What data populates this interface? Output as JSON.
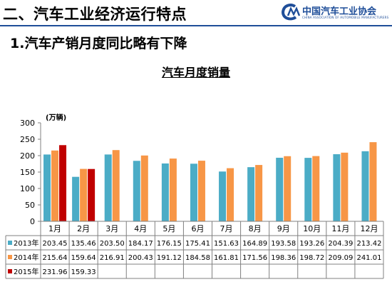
{
  "header": {
    "title": "二、汽车工业经济运行特点",
    "logo_name": "中国汽车工业协会",
    "logo_sub": "CHINA ASSOCIATION OF AUTOMOBILE MANUFACTURERS"
  },
  "section_heading": "1.汽车产销月度同比略有下降",
  "chart_data": {
    "type": "bar",
    "title": "汽车月度销量",
    "unit_label": "(万辆)",
    "ylim": [
      0,
      300
    ],
    "yticks": [
      0,
      50,
      100,
      150,
      200,
      250,
      300
    ],
    "grid": false,
    "legend": "table-left",
    "categories": [
      "1月",
      "2月",
      "3月",
      "4月",
      "5月",
      "6月",
      "7月",
      "8月",
      "9月",
      "10月",
      "11月",
      "12月"
    ],
    "series": [
      {
        "name": "2013年",
        "color": "#4bacc6",
        "values": [
          203.45,
          135.46,
          203.5,
          184.17,
          176.15,
          175.41,
          151.63,
          164.89,
          193.58,
          193.26,
          204.39,
          213.42
        ],
        "labels": [
          "203.45",
          "135.46",
          "203.50",
          "184.17",
          "176.15",
          "175.41",
          "151.63",
          "164.89",
          "193.58",
          "193.26",
          "204.39",
          "213.42"
        ]
      },
      {
        "name": "2014年",
        "color": "#f79646",
        "values": [
          215.64,
          159.64,
          216.91,
          200.43,
          191.12,
          184.58,
          161.81,
          171.56,
          198.36,
          198.72,
          209.09,
          241.01
        ],
        "labels": [
          "215.64",
          "159.64",
          "216.91",
          "200.43",
          "191.12",
          "184.58",
          "161.81",
          "171.56",
          "198.36",
          "198.72",
          "209.09",
          "241.01"
        ]
      },
      {
        "name": "2015年",
        "color": "#c00000",
        "values": [
          231.96,
          159.33,
          null,
          null,
          null,
          null,
          null,
          null,
          null,
          null,
          null,
          null
        ],
        "labels": [
          "231.96",
          "159.33",
          "",
          "",
          "",
          "",
          "",
          "",
          "",
          "",
          "",
          ""
        ]
      }
    ]
  }
}
